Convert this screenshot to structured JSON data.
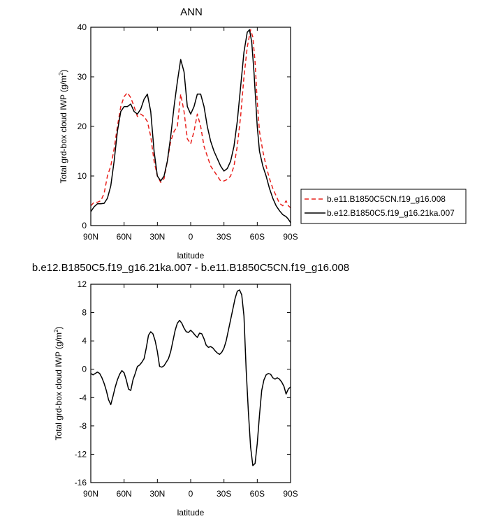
{
  "chart_data": [
    {
      "type": "line",
      "title": "ANN",
      "xlabel": "latitude",
      "ylabel": "Total grd-box cloud IWP (g/m^2)",
      "ylabel_main": "Total grd-box cloud IWP (g/m",
      "ylabel_sup": "2",
      "ylabel_close": ")",
      "xlim": [
        90,
        -90
      ],
      "ylim": [
        0,
        40
      ],
      "x_ticks": [
        {
          "value": 90,
          "label": "90N"
        },
        {
          "value": 60,
          "label": "60N"
        },
        {
          "value": 30,
          "label": "30N"
        },
        {
          "value": 0,
          "label": "0"
        },
        {
          "value": -30,
          "label": "30S"
        },
        {
          "value": -60,
          "label": "60S"
        },
        {
          "value": -90,
          "label": "90S"
        }
      ],
      "y_ticks": [
        {
          "value": 0,
          "label": "0"
        },
        {
          "value": 10,
          "label": "10"
        },
        {
          "value": 20,
          "label": "20"
        },
        {
          "value": 30,
          "label": "30"
        },
        {
          "value": 40,
          "label": "40"
        }
      ],
      "legend_position": "right",
      "series": [
        {
          "name": "b.e11.B1850C5CN.f19_g16.008",
          "color": "#e8201c",
          "dash": "dashed",
          "points": [
            [
              90,
              4.0
            ],
            [
              87,
              4.7
            ],
            [
              84,
              4.7
            ],
            [
              81,
              5.0
            ],
            [
              78,
              6.5
            ],
            [
              75,
              10.0
            ],
            [
              72,
              12.0
            ],
            [
              69,
              15.5
            ],
            [
              66,
              20.0
            ],
            [
              63,
              24.0
            ],
            [
              60,
              26.0
            ],
            [
              57,
              26.8
            ],
            [
              54,
              25.8
            ],
            [
              51,
              24.0
            ],
            [
              48,
              22.0
            ],
            [
              45,
              22.5
            ],
            [
              42,
              22.0
            ],
            [
              39,
              21.0
            ],
            [
              36,
              18.0
            ],
            [
              33,
              13.0
            ],
            [
              30,
              10.0
            ],
            [
              27,
              8.7
            ],
            [
              24,
              9.5
            ],
            [
              21,
              13.0
            ],
            [
              18,
              17.0
            ],
            [
              15,
              19.0
            ],
            [
              12,
              20.0
            ],
            [
              9,
              26.5
            ],
            [
              6,
              23.0
            ],
            [
              3,
              17.5
            ],
            [
              0,
              16.5
            ],
            [
              -3,
              19.0
            ],
            [
              -6,
              22.5
            ],
            [
              -9,
              20.0
            ],
            [
              -12,
              16.0
            ],
            [
              -15,
              14.0
            ],
            [
              -18,
              12.0
            ],
            [
              -21,
              11.0
            ],
            [
              -24,
              10.0
            ],
            [
              -27,
              9.0
            ],
            [
              -30,
              9.0
            ],
            [
              -33,
              9.3
            ],
            [
              -36,
              10.0
            ],
            [
              -39,
              12.0
            ],
            [
              -42,
              16.0
            ],
            [
              -45,
              22.0
            ],
            [
              -48,
              30.0
            ],
            [
              -51,
              36.0
            ],
            [
              -54,
              39.5
            ],
            [
              -56,
              38.0
            ],
            [
              -58,
              33.0
            ],
            [
              -60,
              25.0
            ],
            [
              -62,
              19.0
            ],
            [
              -65,
              15.0
            ],
            [
              -68,
              12.0
            ],
            [
              -71,
              9.5
            ],
            [
              -74,
              7.5
            ],
            [
              -77,
              6.0
            ],
            [
              -80,
              4.5
            ],
            [
              -83,
              4.0
            ],
            [
              -86,
              5.0
            ],
            [
              -88,
              4.0
            ],
            [
              -90,
              3.6
            ]
          ]
        },
        {
          "name": "b.e12.B1850C5.f19_g16.21ka.007",
          "color": "#000000",
          "dash": "solid",
          "points": [
            [
              90,
              2.8
            ],
            [
              87,
              3.8
            ],
            [
              84,
              4.4
            ],
            [
              81,
              4.4
            ],
            [
              78,
              4.5
            ],
            [
              75,
              5.5
            ],
            [
              72,
              8.0
            ],
            [
              69,
              13.0
            ],
            [
              66,
              19.0
            ],
            [
              63,
              23.0
            ],
            [
              60,
              24.0
            ],
            [
              57,
              24.0
            ],
            [
              54,
              24.5
            ],
            [
              51,
              23.0
            ],
            [
              48,
              22.5
            ],
            [
              45,
              23.5
            ],
            [
              42,
              25.5
            ],
            [
              39,
              26.5
            ],
            [
              36,
              23.0
            ],
            [
              33,
              15.0
            ],
            [
              30,
              10.0
            ],
            [
              27,
              9.0
            ],
            [
              24,
              10.0
            ],
            [
              21,
              13.0
            ],
            [
              18,
              18.0
            ],
            [
              15,
              24.0
            ],
            [
              12,
              29.0
            ],
            [
              9,
              33.5
            ],
            [
              6,
              31.0
            ],
            [
              3,
              24.0
            ],
            [
              0,
              22.5
            ],
            [
              -3,
              24.0
            ],
            [
              -6,
              26.5
            ],
            [
              -9,
              26.5
            ],
            [
              -12,
              24.0
            ],
            [
              -15,
              20.0
            ],
            [
              -18,
              17.0
            ],
            [
              -21,
              15.0
            ],
            [
              -24,
              13.5
            ],
            [
              -27,
              12.0
            ],
            [
              -30,
              11.0
            ],
            [
              -33,
              11.5
            ],
            [
              -36,
              13.0
            ],
            [
              -39,
              16.0
            ],
            [
              -42,
              21.0
            ],
            [
              -45,
              28.0
            ],
            [
              -48,
              35.0
            ],
            [
              -51,
              39.0
            ],
            [
              -53,
              39.5
            ],
            [
              -55,
              37.0
            ],
            [
              -57,
              31.0
            ],
            [
              -60,
              20.0
            ],
            [
              -62,
              15.0
            ],
            [
              -65,
              12.0
            ],
            [
              -68,
              10.0
            ],
            [
              -71,
              7.5
            ],
            [
              -74,
              5.5
            ],
            [
              -77,
              4.0
            ],
            [
              -80,
              3.0
            ],
            [
              -83,
              2.2
            ],
            [
              -86,
              1.8
            ],
            [
              -88,
              1.3
            ],
            [
              -90,
              0.6
            ]
          ]
        }
      ]
    },
    {
      "type": "line",
      "title": "b.e12.B1850C5.f19_g16.21ka.007 - b.e11.B1850C5CN.f19_g16.008",
      "xlabel": "latitude",
      "ylabel": "Total grd-box cloud IWP (g/m^2)",
      "ylabel_main": "Total grd-box cloud IWP (g/m",
      "ylabel_sup": "2",
      "ylabel_close": ")",
      "xlim": [
        90,
        -90
      ],
      "ylim": [
        -16,
        12
      ],
      "x_ticks": [
        {
          "value": 90,
          "label": "90N"
        },
        {
          "value": 60,
          "label": "60N"
        },
        {
          "value": 30,
          "label": "30N"
        },
        {
          "value": 0,
          "label": "0"
        },
        {
          "value": -30,
          "label": "30S"
        },
        {
          "value": -60,
          "label": "60S"
        },
        {
          "value": -90,
          "label": "90S"
        }
      ],
      "y_ticks": [
        {
          "value": -16,
          "label": "-16"
        },
        {
          "value": -12,
          "label": "-12"
        },
        {
          "value": -8,
          "label": "-8"
        },
        {
          "value": -4,
          "label": "-4"
        },
        {
          "value": 0,
          "label": "0"
        },
        {
          "value": 4,
          "label": "4"
        },
        {
          "value": 8,
          "label": "8"
        },
        {
          "value": 12,
          "label": "12"
        }
      ],
      "series": [
        {
          "color": "#000000",
          "dash": "solid",
          "points": [
            [
              90,
              -0.6
            ],
            [
              88,
              -0.8
            ],
            [
              86,
              -0.6
            ],
            [
              84,
              -0.4
            ],
            [
              82,
              -0.6
            ],
            [
              80,
              -1.2
            ],
            [
              78,
              -2.0
            ],
            [
              76,
              -3.0
            ],
            [
              74,
              -4.3
            ],
            [
              72,
              -5.0
            ],
            [
              70,
              -3.8
            ],
            [
              68,
              -2.5
            ],
            [
              66,
              -1.5
            ],
            [
              64,
              -0.7
            ],
            [
              62,
              -0.2
            ],
            [
              60,
              -0.5
            ],
            [
              58,
              -1.5
            ],
            [
              56,
              -2.8
            ],
            [
              54,
              -3.0
            ],
            [
              52,
              -1.5
            ],
            [
              50,
              -0.6
            ],
            [
              48,
              0.4
            ],
            [
              46,
              0.6
            ],
            [
              44,
              1.0
            ],
            [
              42,
              1.5
            ],
            [
              40,
              3.0
            ],
            [
              38,
              4.8
            ],
            [
              36,
              5.3
            ],
            [
              34,
              5.0
            ],
            [
              32,
              4.0
            ],
            [
              30,
              2.5
            ],
            [
              28,
              0.4
            ],
            [
              26,
              0.3
            ],
            [
              24,
              0.5
            ],
            [
              22,
              1.0
            ],
            [
              20,
              1.5
            ],
            [
              18,
              2.5
            ],
            [
              16,
              4.0
            ],
            [
              14,
              5.5
            ],
            [
              12,
              6.5
            ],
            [
              10,
              6.9
            ],
            [
              8,
              6.5
            ],
            [
              6,
              5.8
            ],
            [
              4,
              5.3
            ],
            [
              2,
              5.2
            ],
            [
              0,
              5.5
            ],
            [
              -2,
              5.2
            ],
            [
              -4,
              4.8
            ],
            [
              -6,
              4.5
            ],
            [
              -8,
              5.1
            ],
            [
              -10,
              5.0
            ],
            [
              -12,
              4.3
            ],
            [
              -14,
              3.4
            ],
            [
              -16,
              3.1
            ],
            [
              -18,
              3.2
            ],
            [
              -20,
              3.0
            ],
            [
              -22,
              2.6
            ],
            [
              -24,
              2.3
            ],
            [
              -26,
              2.1
            ],
            [
              -28,
              2.4
            ],
            [
              -30,
              3.0
            ],
            [
              -32,
              4.0
            ],
            [
              -34,
              5.5
            ],
            [
              -36,
              7.0
            ],
            [
              -38,
              8.5
            ],
            [
              -40,
              10.0
            ],
            [
              -42,
              11.0
            ],
            [
              -44,
              11.2
            ],
            [
              -46,
              10.5
            ],
            [
              -48,
              7.5
            ],
            [
              -50,
              0.0
            ],
            [
              -52,
              -6.0
            ],
            [
              -54,
              -11.0
            ],
            [
              -56,
              -13.6
            ],
            [
              -58,
              -13.3
            ],
            [
              -60,
              -10.5
            ],
            [
              -62,
              -6.5
            ],
            [
              -64,
              -3.0
            ],
            [
              -66,
              -1.5
            ],
            [
              -68,
              -0.8
            ],
            [
              -70,
              -0.6
            ],
            [
              -72,
              -0.7
            ],
            [
              -74,
              -1.2
            ],
            [
              -76,
              -1.4
            ],
            [
              -78,
              -1.2
            ],
            [
              -80,
              -1.4
            ],
            [
              -82,
              -1.8
            ],
            [
              -84,
              -2.4
            ],
            [
              -86,
              -3.5
            ],
            [
              -88,
              -2.8
            ],
            [
              -90,
              -2.5
            ]
          ]
        }
      ]
    }
  ]
}
